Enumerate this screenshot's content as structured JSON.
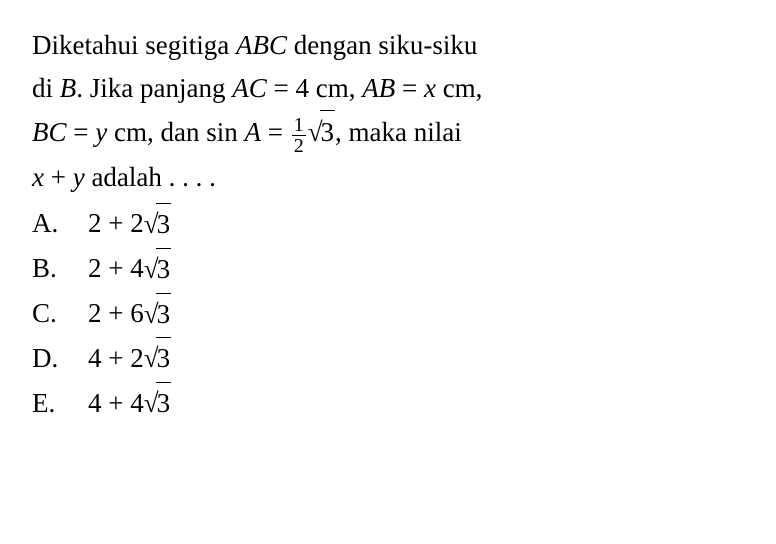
{
  "problem": {
    "line1_prefix": "Diketahui segitiga ",
    "line1_var": "ABC",
    "line1_suffix": " dengan siku-siku",
    "line2_prefix": "di ",
    "line2_var1": "B",
    "line2_mid1": ". Jika panjang ",
    "line2_var2": "AC",
    "line2_eq1": " = 4 cm, ",
    "line2_var3": "AB",
    "line2_eq2": " = ",
    "line2_var4": "x",
    "line2_suffix": " cm,",
    "line3_var1": "BC",
    "line3_eq1": " = ",
    "line3_var2": "y",
    "line3_mid1": " cm, dan sin ",
    "line3_var3": "A",
    "line3_eq2": " = ",
    "frac_num": "1",
    "frac_den": "2",
    "sqrt_val": "3",
    "line3_suffix": ", maka nilai",
    "line4_var1": "x",
    "line4_plus": " + ",
    "line4_var2": "y",
    "line4_suffix": " adalah . . . ."
  },
  "options": [
    {
      "label": "A.",
      "prefix": "2 + 2",
      "sqrt": "3"
    },
    {
      "label": "B.",
      "prefix": "2 + 4",
      "sqrt": "3"
    },
    {
      "label": "C.",
      "prefix": "2 + 6",
      "sqrt": "3"
    },
    {
      "label": "D.",
      "prefix": "4 + 2",
      "sqrt": "3"
    },
    {
      "label": "E.",
      "prefix": "4 + 4",
      "sqrt": "3"
    }
  ],
  "style": {
    "font_family": "Times New Roman",
    "font_size_pt": 20,
    "text_color": "#000000",
    "background_color": "#ffffff"
  }
}
